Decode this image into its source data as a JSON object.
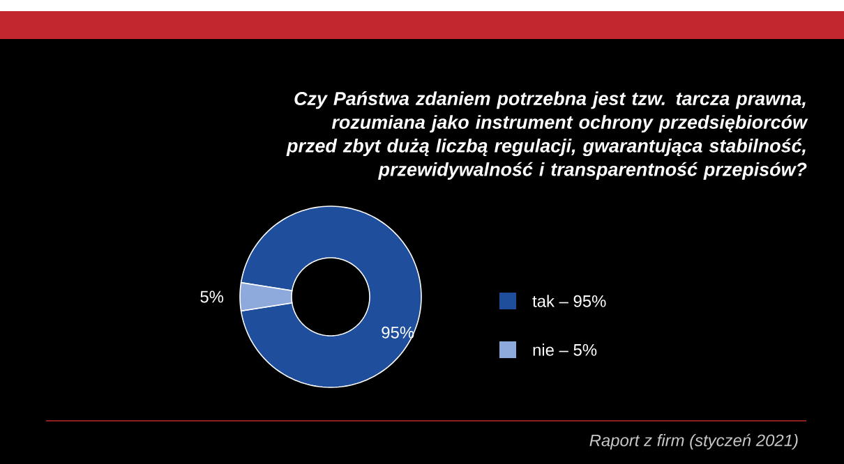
{
  "chart_data": {
    "type": "donut",
    "title": "Czy Państwa zdaniem potrzebna jest tzw. tarcza prawna, rozumiana jako instrument ochrony przedsiębiorców przed zbyt dużą liczbą regulacji, gwarantująca stabilność, przewidywalność i transparentność przepisów?",
    "categories": [
      "tak – 95%",
      "nie – 5%"
    ],
    "values": [
      95,
      5
    ],
    "colors": [
      "#1f4e9c",
      "#8ea9db"
    ],
    "value_labels": [
      "95%",
      "5%"
    ],
    "legend": "right",
    "annotations": [
      "Raport z firm (styczeń 2021)"
    ]
  }
}
